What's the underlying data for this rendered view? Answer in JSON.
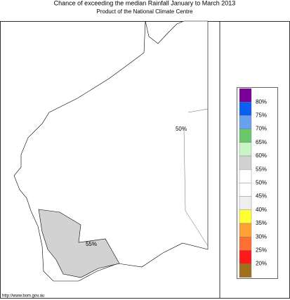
{
  "header": {
    "title": "Chance of exceeding the median Rainfall January to March 2013",
    "subtitle": "Product of the National Climate Centre"
  },
  "map": {
    "labels": [
      "50%",
      "55%"
    ]
  },
  "legend": {
    "swatches": [
      "#7a0099",
      "#0a5ff0",
      "#6aa0f0",
      "#6ac86a",
      "#c8f5c8",
      "#d2d2d2",
      "#ffffff",
      "#ffffff",
      "#eeeeee",
      "#ffff33",
      "#ffa033",
      "#ff6e33",
      "#ff1a1a",
      "#a0701e"
    ],
    "labels": [
      "80%",
      "75%",
      "70%",
      "65%",
      "60%",
      "55%",
      "50%",
      "45%",
      "40%",
      "35%",
      "30%",
      "25%",
      "20%"
    ]
  },
  "footer": "http://www.bom.gov.au"
}
